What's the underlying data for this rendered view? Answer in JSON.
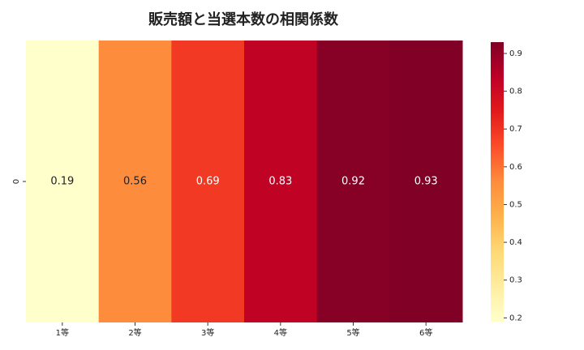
{
  "chart_data": {
    "type": "heatmap",
    "title": "販売額と当選本数の相関係数",
    "x": [
      "1等",
      "2等",
      "3等",
      "4等",
      "5等",
      "6等"
    ],
    "y": [
      "0"
    ],
    "values": [
      [
        0.19,
        0.56,
        0.69,
        0.83,
        0.92,
        0.93
      ]
    ],
    "colormap": [
      "#ffffcc",
      "#ffeda0",
      "#fed976",
      "#feb24c",
      "#fd8d3c",
      "#fc4e2a",
      "#e31a1c",
      "#bd0026",
      "#800026"
    ],
    "clim": [
      0.19,
      0.93
    ],
    "cticks": [
      0.2,
      0.3,
      0.4,
      0.5,
      0.6,
      0.7,
      0.8,
      0.9
    ]
  }
}
